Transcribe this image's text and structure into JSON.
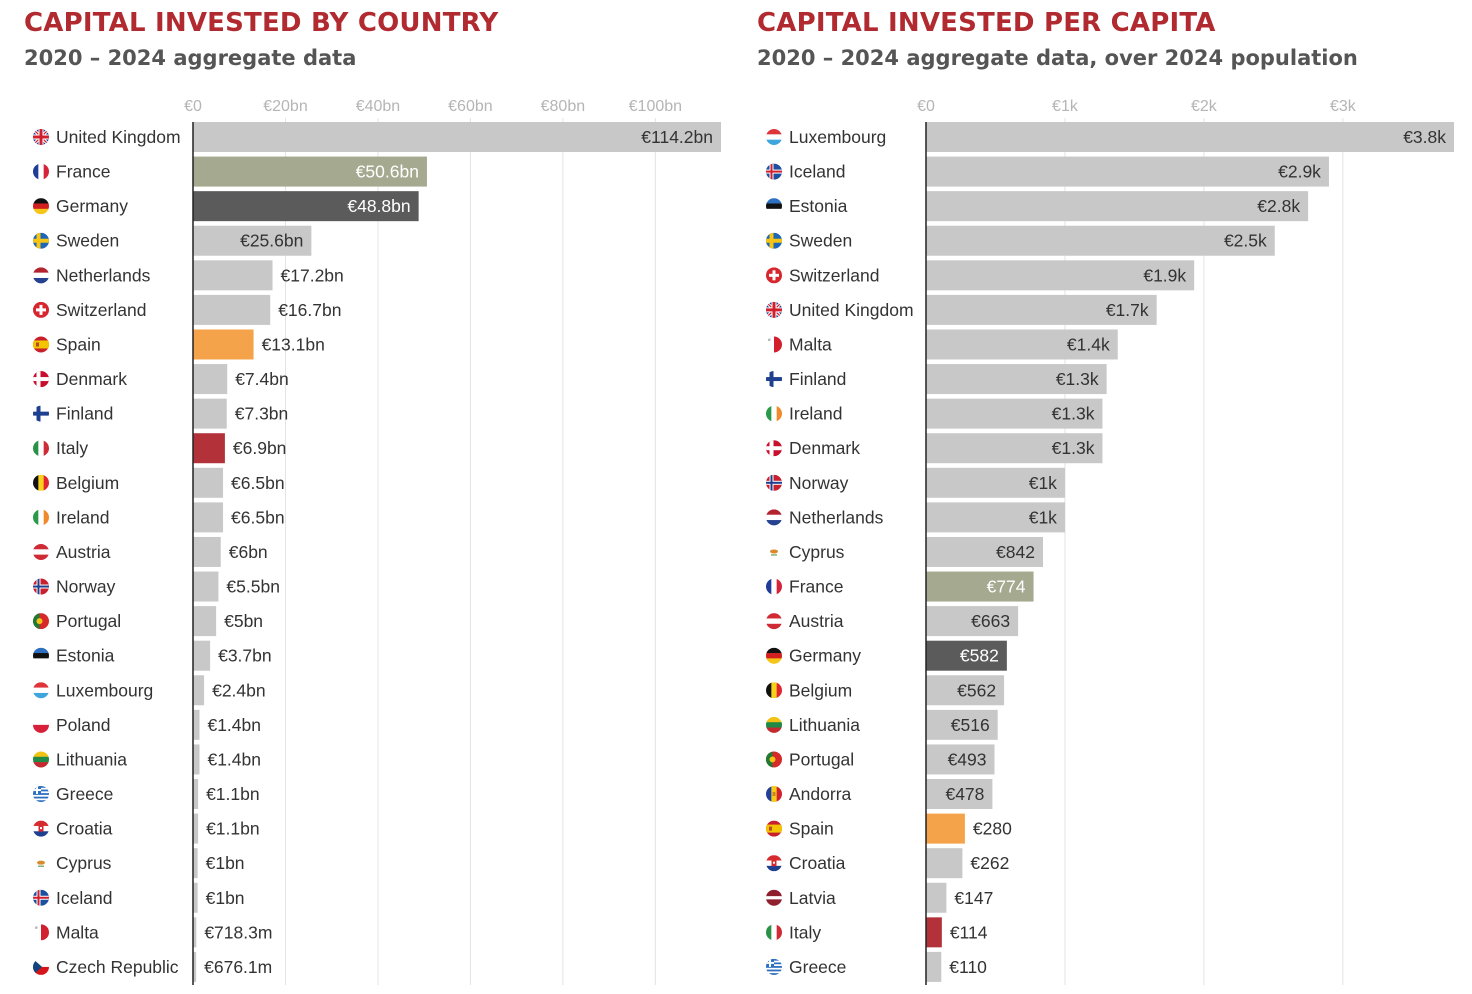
{
  "colors": {
    "title": "#b02a30",
    "subtitle": "#555555",
    "bar_default": "#c8c8c8",
    "france": "#a5a98f",
    "germany": "#5b5b5b",
    "spain": "#f5a34a",
    "italy": "#b3323a",
    "grid": "#e3e3e3",
    "axis_label": "#b5b5b5",
    "label_text": "#333333"
  },
  "chart_data": [
    {
      "type": "bar",
      "orientation": "horizontal",
      "title": "CAPITAL INVESTED BY COUNTRY",
      "subtitle": "2020 – 2024 aggregate data",
      "xlim": [
        0,
        114.2
      ],
      "xticks": [
        0,
        20,
        40,
        60,
        80,
        100
      ],
      "xtick_labels": [
        "€0",
        "€20bn",
        "€40bn",
        "€60bn",
        "€80bn",
        "€100bn"
      ],
      "grid": true,
      "unit": "€bn",
      "categories": [
        "United Kingdom",
        "France",
        "Germany",
        "Sweden",
        "Netherlands",
        "Switzerland",
        "Spain",
        "Denmark",
        "Finland",
        "Italy",
        "Belgium",
        "Ireland",
        "Austria",
        "Norway",
        "Portugal",
        "Estonia",
        "Luxembourg",
        "Poland",
        "Lithuania",
        "Greece",
        "Croatia",
        "Cyprus",
        "Iceland",
        "Malta",
        "Czech Republic"
      ],
      "values": [
        114.2,
        50.6,
        48.8,
        25.6,
        17.2,
        16.7,
        13.1,
        7.4,
        7.3,
        6.9,
        6.5,
        6.5,
        6.0,
        5.5,
        5.0,
        3.7,
        2.4,
        1.4,
        1.4,
        1.1,
        1.1,
        1.0,
        1.0,
        0.7183,
        0.6761
      ],
      "value_labels": [
        "€114.2bn",
        "€50.6bn",
        "€48.8bn",
        "€25.6bn",
        "€17.2bn",
        "€16.7bn",
        "€13.1bn",
        "€7.4bn",
        "€7.3bn",
        "€6.9bn",
        "€6.5bn",
        "€6.5bn",
        "€6bn",
        "€5.5bn",
        "€5bn",
        "€3.7bn",
        "€2.4bn",
        "€1.4bn",
        "€1.4bn",
        "€1.1bn",
        "€1.1bn",
        "€1bn",
        "€1bn",
        "€718.3m",
        "€676.1m"
      ],
      "highlight": {
        "France": "france",
        "Germany": "germany",
        "Spain": "spain",
        "Italy": "italy"
      }
    },
    {
      "type": "bar",
      "orientation": "horizontal",
      "title": "CAPITAL INVESTED PER CAPITA",
      "subtitle": "2020 – 2024 aggregate data, over 2024 population",
      "xlim": [
        0,
        3800
      ],
      "xticks": [
        0,
        1000,
        2000,
        3000
      ],
      "xtick_labels": [
        "€0",
        "€1k",
        "€2k",
        "€3k"
      ],
      "grid": true,
      "unit": "€",
      "categories": [
        "Luxembourg",
        "Iceland",
        "Estonia",
        "Sweden",
        "Switzerland",
        "United Kingdom",
        "Malta",
        "Finland",
        "Ireland",
        "Denmark",
        "Norway",
        "Netherlands",
        "Cyprus",
        "France",
        "Austria",
        "Germany",
        "Belgium",
        "Lithuania",
        "Portugal",
        "Andorra",
        "Spain",
        "Croatia",
        "Latvia",
        "Italy",
        "Greece"
      ],
      "values": [
        3800,
        2900,
        2750,
        2510,
        1930,
        1660,
        1380,
        1300,
        1270,
        1270,
        1000,
        1000,
        842,
        774,
        663,
        582,
        562,
        516,
        493,
        478,
        280,
        262,
        147,
        114,
        110
      ],
      "value_labels": [
        "€3.8k",
        "€2.9k",
        "€2.8k",
        "€2.5k",
        "€1.9k",
        "€1.7k",
        "€1.4k",
        "€1.3k",
        "€1.3k",
        "€1.3k",
        "€1k",
        "€1k",
        "€842",
        "€774",
        "€663",
        "€582",
        "€562",
        "€516",
        "€493",
        "€478",
        "€280",
        "€262",
        "€147",
        "€114",
        "€110"
      ],
      "highlight": {
        "France": "france",
        "Germany": "germany",
        "Spain": "spain",
        "Italy": "italy"
      }
    }
  ],
  "flags": {
    "United Kingdom": "uk-flag-icon",
    "France": "france-flag-icon",
    "Germany": "germany-flag-icon",
    "Sweden": "sweden-flag-icon",
    "Netherlands": "netherlands-flag-icon",
    "Switzerland": "switzerland-flag-icon",
    "Spain": "spain-flag-icon",
    "Denmark": "denmark-flag-icon",
    "Finland": "finland-flag-icon",
    "Italy": "italy-flag-icon",
    "Belgium": "belgium-flag-icon",
    "Ireland": "ireland-flag-icon",
    "Austria": "austria-flag-icon",
    "Norway": "norway-flag-icon",
    "Portugal": "portugal-flag-icon",
    "Estonia": "estonia-flag-icon",
    "Luxembourg": "luxembourg-flag-icon",
    "Poland": "poland-flag-icon",
    "Lithuania": "lithuania-flag-icon",
    "Greece": "greece-flag-icon",
    "Croatia": "croatia-flag-icon",
    "Cyprus": "cyprus-flag-icon",
    "Iceland": "iceland-flag-icon",
    "Malta": "malta-flag-icon",
    "Czech Republic": "czech-republic-flag-icon",
    "Andorra": "andorra-flag-icon",
    "Latvia": "latvia-flag-icon"
  }
}
